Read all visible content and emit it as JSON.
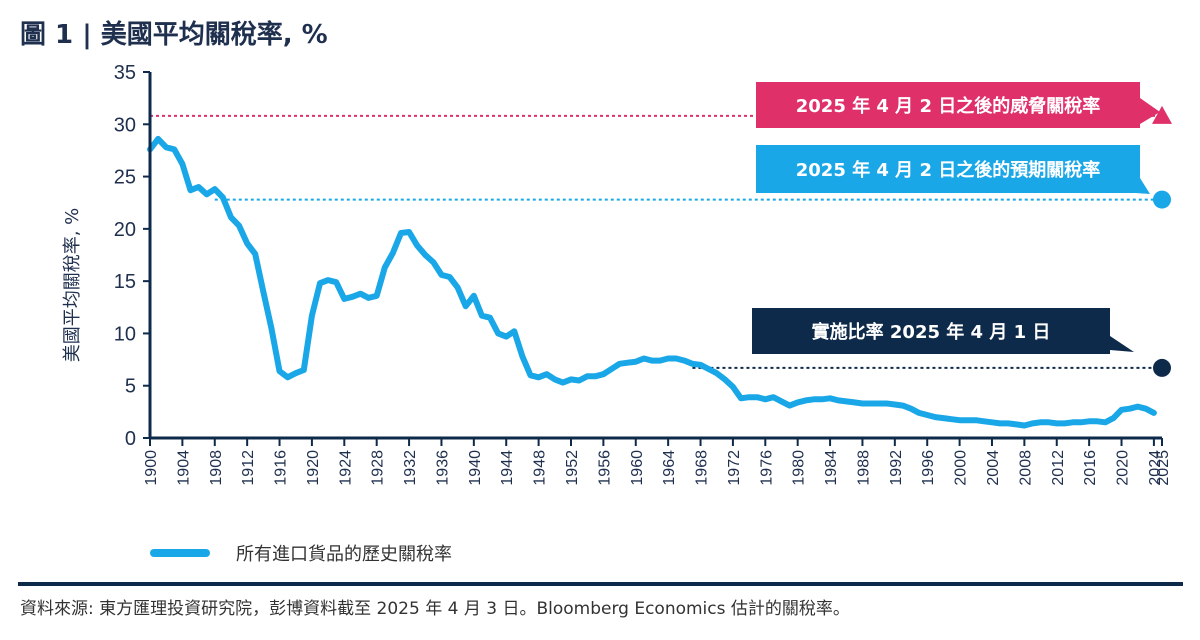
{
  "title": "圖 1 | 美國平均關稅率, %",
  "legend": {
    "label": "所有進口貨品的歷史關稅率"
  },
  "source": "資料來源: 東方匯理投資研究院，彭博資料截至 2025 年 4 月 3 日。Bloomberg Economics 估計的關稅率。",
  "colors": {
    "history": "#1aa7e8",
    "threat": "#e0306a",
    "expected": "#1aa7e8",
    "implemented": "#0e2a4a",
    "axis": "#0e2a4a"
  },
  "chart_data": {
    "type": "line",
    "ylabel": "美國平均關稅率, %",
    "ylim": [
      0,
      35
    ],
    "xlim": [
      1900,
      2025
    ],
    "yticks": [
      0,
      5,
      10,
      15,
      20,
      25,
      30,
      35
    ],
    "xticks": [
      1900,
      1904,
      1908,
      1912,
      1916,
      1920,
      1924,
      1928,
      1932,
      1936,
      1940,
      1944,
      1948,
      1952,
      1956,
      1960,
      1964,
      1968,
      1972,
      1976,
      1980,
      1984,
      1988,
      1992,
      1996,
      2000,
      2004,
      2008,
      2012,
      2016,
      2020,
      2024,
      2025
    ],
    "series": [
      {
        "name": "所有進口貨品的歷史關稅率",
        "x": [
          1900,
          1901,
          1902,
          1903,
          1904,
          1905,
          1906,
          1907,
          1908,
          1909,
          1910,
          1911,
          1912,
          1913,
          1914,
          1915,
          1916,
          1917,
          1918,
          1919,
          1920,
          1921,
          1922,
          1923,
          1924,
          1925,
          1926,
          1927,
          1928,
          1929,
          1930,
          1931,
          1932,
          1933,
          1934,
          1935,
          1936,
          1937,
          1938,
          1939,
          1940,
          1941,
          1942,
          1943,
          1944,
          1945,
          1946,
          1947,
          1948,
          1949,
          1950,
          1951,
          1952,
          1953,
          1954,
          1955,
          1956,
          1957,
          1958,
          1959,
          1960,
          1961,
          1962,
          1963,
          1964,
          1965,
          1966,
          1967,
          1968,
          1969,
          1970,
          1971,
          1972,
          1973,
          1974,
          1975,
          1976,
          1977,
          1978,
          1979,
          1980,
          1981,
          1982,
          1983,
          1984,
          1985,
          1986,
          1987,
          1988,
          1989,
          1990,
          1991,
          1992,
          1993,
          1994,
          1995,
          1996,
          1997,
          1998,
          1999,
          2000,
          2001,
          2002,
          2003,
          2004,
          2005,
          2006,
          2007,
          2008,
          2009,
          2010,
          2011,
          2012,
          2013,
          2014,
          2015,
          2016,
          2017,
          2018,
          2019,
          2020,
          2021,
          2022,
          2023,
          2024
        ],
        "values": [
          27.6,
          28.6,
          27.8,
          27.6,
          26.2,
          23.7,
          24.0,
          23.3,
          23.8,
          23.0,
          21.1,
          20.3,
          18.6,
          17.6,
          14.0,
          10.5,
          6.4,
          5.8,
          6.2,
          6.5,
          11.7,
          14.8,
          15.1,
          14.9,
          13.3,
          13.5,
          13.8,
          13.4,
          13.6,
          16.3,
          17.7,
          19.6,
          19.7,
          18.4,
          17.5,
          16.8,
          15.6,
          15.4,
          14.4,
          12.6,
          13.6,
          11.7,
          11.5,
          10.0,
          9.7,
          10.2,
          7.8,
          6.0,
          5.8,
          6.1,
          5.6,
          5.3,
          5.6,
          5.5,
          5.9,
          5.9,
          6.1,
          6.6,
          7.1,
          7.2,
          7.3,
          7.6,
          7.4,
          7.4,
          7.6,
          7.6,
          7.4,
          7.1,
          7.0,
          6.6,
          6.2,
          5.6,
          4.9,
          3.8,
          3.9,
          3.9,
          3.7,
          3.9,
          3.5,
          3.1,
          3.4,
          3.6,
          3.7,
          3.7,
          3.8,
          3.6,
          3.5,
          3.4,
          3.3,
          3.3,
          3.3,
          3.3,
          3.2,
          3.1,
          2.8,
          2.4,
          2.2,
          2.0,
          1.9,
          1.8,
          1.7,
          1.7,
          1.7,
          1.6,
          1.5,
          1.4,
          1.4,
          1.3,
          1.2,
          1.4,
          1.5,
          1.5,
          1.4,
          1.4,
          1.5,
          1.5,
          1.6,
          1.6,
          1.5,
          1.9,
          2.7,
          2.8,
          3.0,
          2.8,
          2.4
        ]
      }
    ],
    "reference_lines": [
      {
        "name": "threat",
        "label": "2025 年 4 月 2 日之後的威脅關稅率",
        "value": 30.8,
        "x": 2025,
        "marker": "triangle",
        "style": "dotted"
      },
      {
        "name": "expected",
        "label": "2025 年 4 月 2 日之後的預期關稅率",
        "value": 22.8,
        "x": 2025,
        "marker": "circle",
        "style": "dotted"
      },
      {
        "name": "implemented",
        "label": "實施比率 2025 年 4 月 1 日",
        "value": 6.7,
        "x": 2025,
        "marker": "circle",
        "style": "dotted"
      }
    ]
  }
}
